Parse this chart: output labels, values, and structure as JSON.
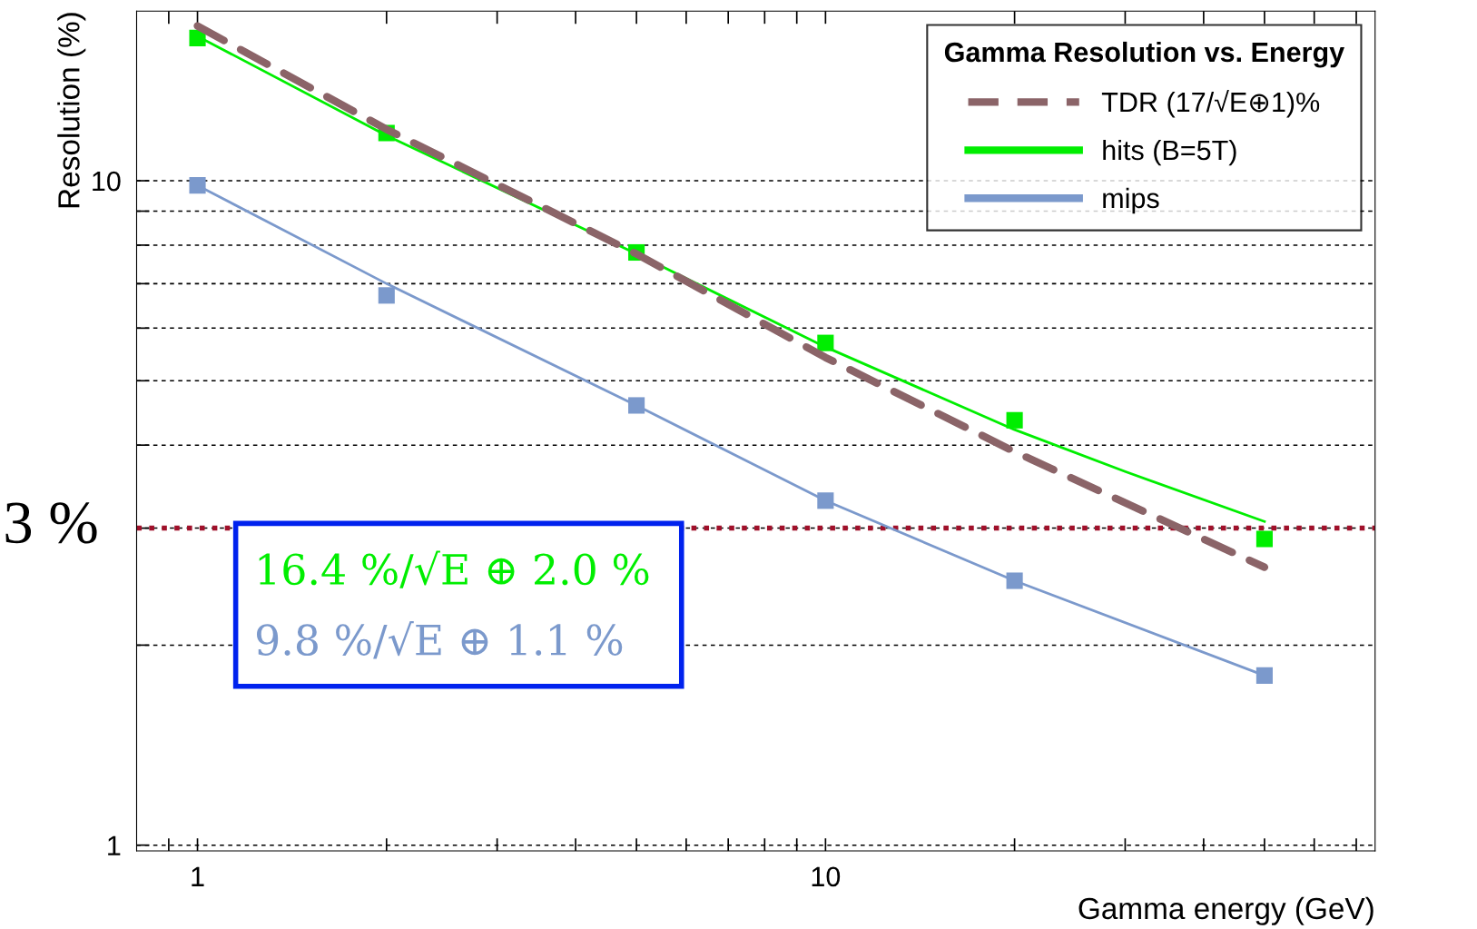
{
  "chart_data": {
    "type": "line",
    "xlabel": "Gamma energy (GeV)",
    "ylabel": "Resolution (%)",
    "legend_title": "Gamma Resolution vs. Energy",
    "log": "xy",
    "xlim": [
      0.8,
      75
    ],
    "ylim": [
      0.98,
      18
    ],
    "xticks": [
      {
        "value": 0.9,
        "label": null
      },
      1,
      {
        "value": 2,
        "label": null
      },
      {
        "value": 3,
        "label": null
      },
      {
        "value": 4,
        "label": null
      },
      {
        "value": 5,
        "label": null
      },
      {
        "value": 6,
        "label": null
      },
      {
        "value": 7,
        "label": null
      },
      {
        "value": 8,
        "label": null
      },
      {
        "value": 9,
        "label": null
      },
      10,
      {
        "value": 20,
        "label": null
      },
      {
        "value": 30,
        "label": null
      },
      {
        "value": 40,
        "label": null
      },
      {
        "value": 50,
        "label": null
      },
      {
        "value": 60,
        "label": null
      },
      {
        "value": 70,
        "label": null
      }
    ],
    "yticks": [
      1,
      {
        "value": 2,
        "label": null
      },
      {
        "value": 3,
        "label": null
      },
      {
        "value": 4,
        "label": null
      },
      {
        "value": 5,
        "label": null
      },
      {
        "value": 6,
        "label": null
      },
      {
        "value": 7,
        "label": null
      },
      {
        "value": 8,
        "label": null
      },
      {
        "value": 9,
        "label": null
      },
      10
    ],
    "grid": "y",
    "legend": "top right",
    "series": [
      {
        "name": "TDR (17/√E⊕1)%",
        "line_style": "dashed",
        "marker": "none",
        "color": "#8b6468",
        "x": [
          1,
          2,
          5,
          10,
          20,
          50
        ],
        "values": [
          17.1,
          11.95,
          7.76,
          5.42,
          3.91,
          2.62
        ]
      },
      {
        "name": "hits (B=5T)",
        "type": "scatter",
        "marker": "square",
        "color": "#00ee00",
        "x": [
          1,
          2,
          5,
          10,
          20,
          50
        ],
        "values": [
          16.4,
          11.8,
          7.8,
          5.7,
          4.36,
          2.89
        ]
      },
      {
        "name": "mips",
        "type": "scatter",
        "marker": "square",
        "color": "#7b99cc",
        "x": [
          1,
          2,
          5,
          10,
          20,
          50
        ],
        "values": [
          9.84,
          6.72,
          4.59,
          3.3,
          2.5,
          1.8
        ]
      },
      {
        "line_style": "solid",
        "marker": "none",
        "color": "#00ee00",
        "x": [
          1,
          2,
          5,
          10,
          20,
          30,
          50
        ],
        "values": [
          16.5,
          11.7,
          7.76,
          5.62,
          4.22,
          3.65,
          3.07
        ]
      },
      {
        "line_style": "solid",
        "marker": "none",
        "color": "#7b99cc",
        "x": [
          1,
          2,
          5,
          10,
          20,
          50
        ],
        "values": [
          9.84,
          7.0,
          4.59,
          3.3,
          2.5,
          1.8
        ]
      }
    ],
    "ref_lines": [
      {
        "axis": "y",
        "value": 3,
        "label": "3 %",
        "color": "#a0102a",
        "line_style": "dotted"
      }
    ],
    "annotations": [
      "16.4 %/√E ⊕ 2.0 %",
      "9.8 %/√E ⊕ 1.1 %"
    ]
  }
}
